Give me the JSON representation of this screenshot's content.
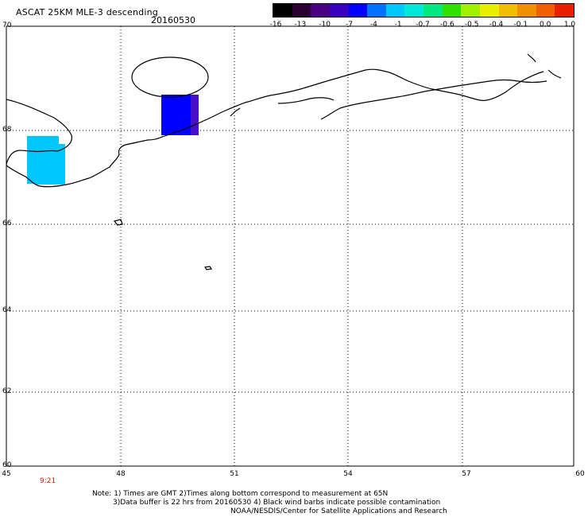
{
  "header": {
    "title": "ASCAT 25KM MLE-3 descending",
    "date": "20160530"
  },
  "colorbar": {
    "labels": [
      "-16",
      "-13",
      "-10",
      "-7",
      "-4",
      "-1",
      "-0.7",
      "-0.6",
      "-0.5",
      "-0.4",
      "-0.1",
      "0.0",
      "1.0"
    ],
    "colors": [
      "#000000",
      "#2a0033",
      "#4a0080",
      "#3a00c0",
      "#0000ff",
      "#0070ff",
      "#00c8ff",
      "#00e8d8",
      "#00e880",
      "#30e000",
      "#a0f000",
      "#e8f000",
      "#f0c000",
      "#f09000",
      "#f06000",
      "#e82000"
    ]
  },
  "axes": {
    "lat_ticks": [
      "70",
      "68",
      "66",
      "64",
      "62",
      "60"
    ],
    "lon_ticks": [
      "45",
      "48",
      "51",
      "54",
      "57",
      "60"
    ]
  },
  "swath_time": "9:21",
  "footer": {
    "note_line1": "Note: 1) Times are GMT 2)Times along bottom correspond to measurement at 65N",
    "note_line2": "3)Data buffer is 22 hrs from 20160530 4) Black wind barbs indicate possible contamination",
    "credit": "NOAA/NESDIS/Center for Satellite Applications and Research"
  }
}
